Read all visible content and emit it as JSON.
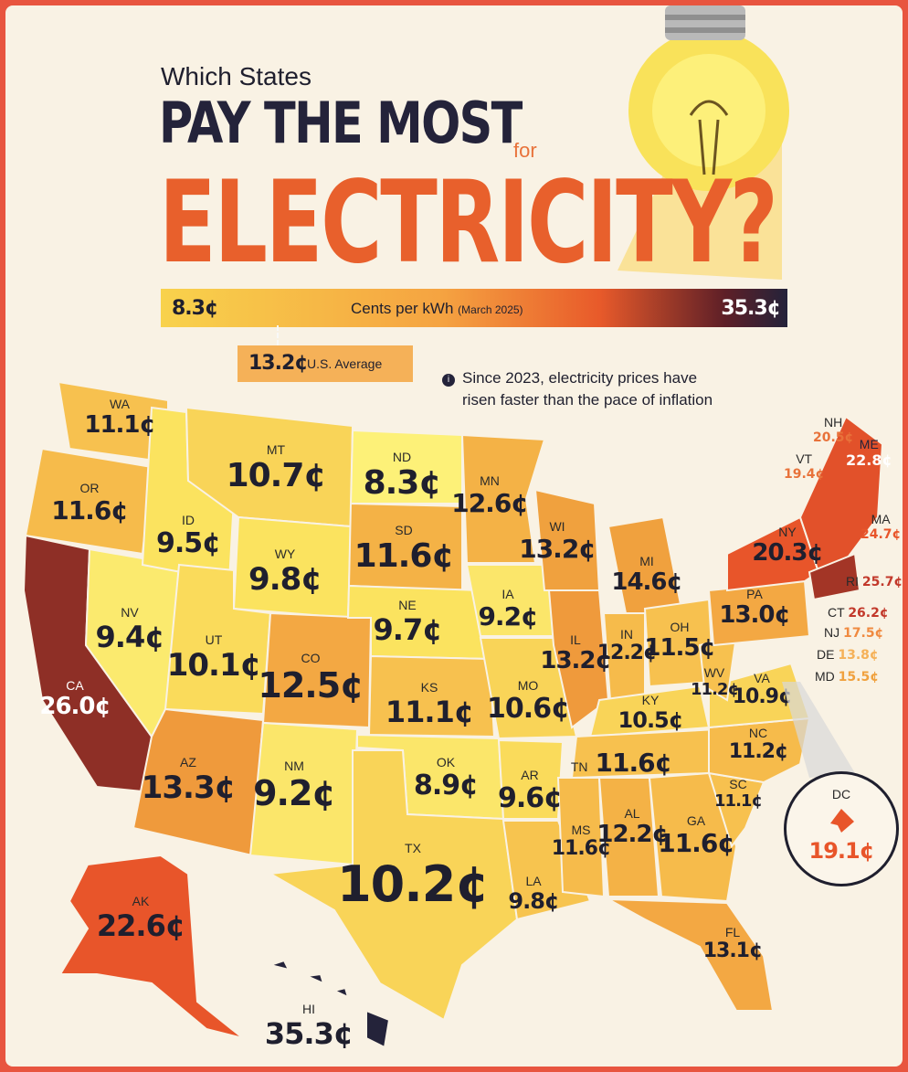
{
  "title": {
    "pre": "Which States",
    "main": "PAY THE MOST",
    "for": "for",
    "big": "ELECTRICITY?"
  },
  "scale": {
    "min": "8.3¢",
    "max": "35.3¢",
    "label": "Cents per kWh",
    "period": "(March 2025)",
    "gradient": [
      "#f8d24c",
      "#f5a341",
      "#e85a2a",
      "#5e1f27",
      "#24233a"
    ]
  },
  "average": {
    "value": "13.2¢",
    "label": "U.S. Average"
  },
  "note": {
    "line1": "Since 2023, electricity prices have",
    "line2": "risen faster than the pace of inflation"
  },
  "states": [
    {
      "ab": "WA",
      "val": "11.1¢"
    },
    {
      "ab": "OR",
      "val": "11.6¢"
    },
    {
      "ab": "CA",
      "val": "26.0¢"
    },
    {
      "ab": "ID",
      "val": "9.5¢"
    },
    {
      "ab": "NV",
      "val": "9.4¢"
    },
    {
      "ab": "MT",
      "val": "10.7¢"
    },
    {
      "ab": "WY",
      "val": "9.8¢"
    },
    {
      "ab": "UT",
      "val": "10.1¢"
    },
    {
      "ab": "AZ",
      "val": "13.3¢"
    },
    {
      "ab": "CO",
      "val": "12.5¢"
    },
    {
      "ab": "NM",
      "val": "9.2¢"
    },
    {
      "ab": "ND",
      "val": "8.3¢"
    },
    {
      "ab": "SD",
      "val": "11.6¢"
    },
    {
      "ab": "NE",
      "val": "9.7¢"
    },
    {
      "ab": "KS",
      "val": "11.1¢"
    },
    {
      "ab": "OK",
      "val": "8.9¢"
    },
    {
      "ab": "TX",
      "val": "10.2¢"
    },
    {
      "ab": "MN",
      "val": "12.6¢"
    },
    {
      "ab": "IA",
      "val": "9.2¢"
    },
    {
      "ab": "MO",
      "val": "10.6¢"
    },
    {
      "ab": "AR",
      "val": "9.6¢"
    },
    {
      "ab": "LA",
      "val": "9.8¢"
    },
    {
      "ab": "WI",
      "val": "13.2¢"
    },
    {
      "ab": "IL",
      "val": "13.2¢"
    },
    {
      "ab": "MI",
      "val": "14.6¢"
    },
    {
      "ab": "IN",
      "val": "12.2¢"
    },
    {
      "ab": "OH",
      "val": "11.5¢"
    },
    {
      "ab": "KY",
      "val": "10.5¢"
    },
    {
      "ab": "TN",
      "val": "11.6¢"
    },
    {
      "ab": "MS",
      "val": "11.6¢"
    },
    {
      "ab": "AL",
      "val": "12.2¢"
    },
    {
      "ab": "GA",
      "val": "11.6¢"
    },
    {
      "ab": "FL",
      "val": "13.1¢"
    },
    {
      "ab": "SC",
      "val": "11.1¢"
    },
    {
      "ab": "NC",
      "val": "11.2¢"
    },
    {
      "ab": "VA",
      "val": "10.9¢"
    },
    {
      "ab": "WV",
      "val": "11.2¢"
    },
    {
      "ab": "PA",
      "val": "13.0¢"
    },
    {
      "ab": "NY",
      "val": "20.3¢"
    },
    {
      "ab": "AK",
      "val": "22.6¢"
    },
    {
      "ab": "HI",
      "val": "35.3¢"
    }
  ],
  "northeast": [
    {
      "ab": "NH",
      "val": "20.5¢"
    },
    {
      "ab": "VT",
      "val": "19.4¢"
    },
    {
      "ab": "ME",
      "val": "22.8¢"
    },
    {
      "ab": "MA",
      "val": "24.7¢"
    },
    {
      "ab": "RI",
      "val": "25.7¢"
    },
    {
      "ab": "CT",
      "val": "26.2¢"
    },
    {
      "ab": "NJ",
      "val": "17.5¢"
    },
    {
      "ab": "DE",
      "val": "13.8¢"
    },
    {
      "ab": "MD",
      "val": "15.5¢"
    }
  ],
  "dc": {
    "ab": "DC",
    "val": "19.1¢"
  }
}
